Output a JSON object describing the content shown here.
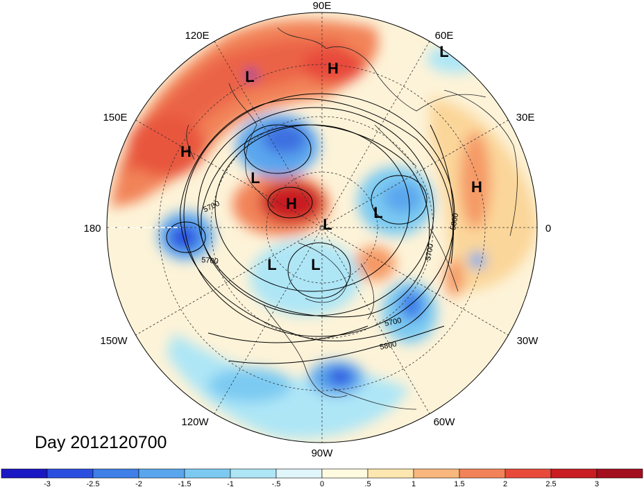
{
  "map": {
    "projection": "north-polar-stereographic",
    "date_label": "Day 2012120700",
    "longitude_labels": [
      "90E",
      "60E",
      "30E",
      "0",
      "30W",
      "60W",
      "90W",
      "120W",
      "150W",
      "180",
      "150E",
      "120E"
    ],
    "pressure_centers": [
      {
        "type": "H",
        "region": "siberia"
      },
      {
        "type": "H",
        "region": "pacific-west"
      },
      {
        "type": "H",
        "region": "arctic-east"
      },
      {
        "type": "H",
        "region": "north-africa"
      },
      {
        "type": "L",
        "region": "atlantic-far-east"
      },
      {
        "type": "L",
        "region": "central-asia"
      },
      {
        "type": "L",
        "region": "east-siberia"
      },
      {
        "type": "L",
        "region": "arctic-central"
      },
      {
        "type": "L",
        "region": "arctic-europe"
      },
      {
        "type": "L",
        "region": "alaska"
      },
      {
        "type": "L",
        "region": "canada"
      }
    ],
    "contour_labels": [
      "5700",
      "5700",
      "5800",
      "5700",
      "5700",
      "5800"
    ]
  },
  "colorbar": {
    "ticks": [
      "-3",
      "-2.5",
      "-2",
      "-1.5",
      "-1",
      "-.5",
      "0",
      ".5",
      "1",
      "1.5",
      "2",
      "2.5",
      "3"
    ],
    "colors": [
      "#1a17c4",
      "#2a4fe0",
      "#3e7fe8",
      "#5aa6ee",
      "#7ccaf2",
      "#aee6f6",
      "#e0f6fb",
      "#fffbe0",
      "#fde7b0",
      "#f9b77d",
      "#f28358",
      "#e84a3a",
      "#c91d22",
      "#a30f1e"
    ]
  }
}
